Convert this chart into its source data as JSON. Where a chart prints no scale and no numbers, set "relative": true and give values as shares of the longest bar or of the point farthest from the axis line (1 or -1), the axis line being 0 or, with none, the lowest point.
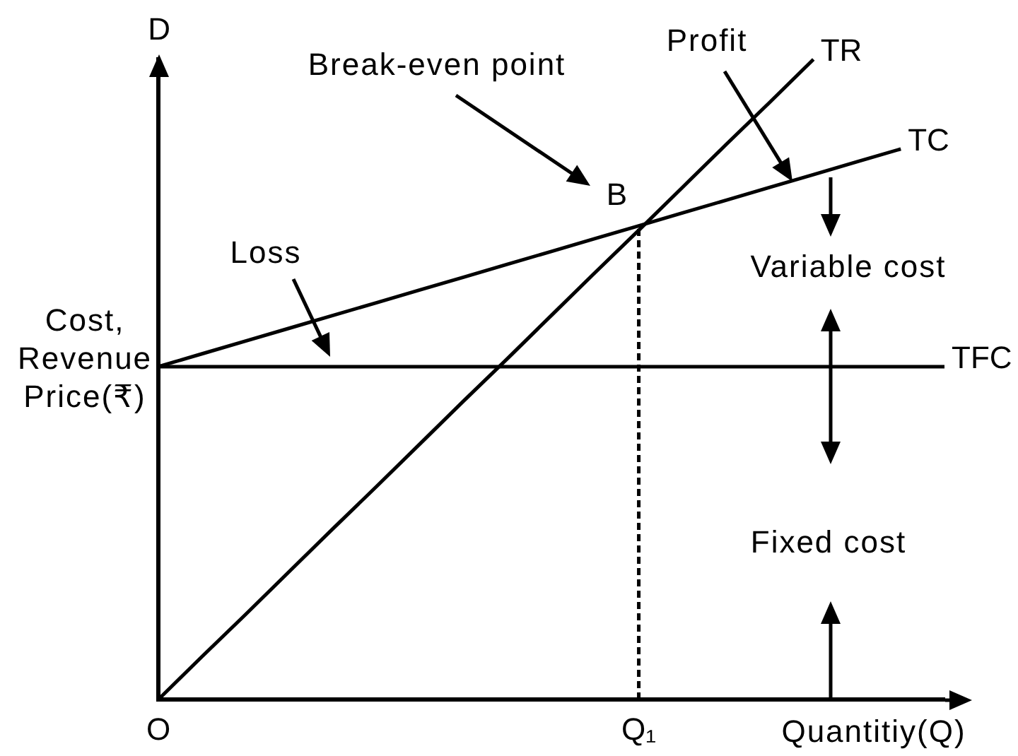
{
  "chart_data": {
    "type": "line",
    "relative": true,
    "ylabel": "Cost, Revenue Price(₹)",
    "xlabel": "Quantitiy(Q)",
    "tick_labels": "x",
    "categories": [
      "O",
      null,
      null,
      null,
      null,
      null,
      null,
      null,
      null,
      null,
      null,
      "Q₁",
      null,
      null,
      null,
      null,
      null,
      null,
      null
    ],
    "series": [
      {
        "name": "TR",
        "color": "#000000",
        "values": [
          0,
          0.067,
          0.133,
          0.2,
          0.267,
          0.333,
          0.4,
          0.467,
          0.533,
          0.6,
          0.667,
          0.733,
          0.8,
          0.867,
          0.933,
          1,
          null,
          null,
          null
        ]
      },
      {
        "name": "TC",
        "color": "#000000",
        "values": [
          0.52,
          0.54,
          0.56,
          0.58,
          0.6,
          0.62,
          0.64,
          0.66,
          0.68,
          0.7,
          0.72,
          0.74,
          0.76,
          0.78,
          0.8,
          0.82,
          0.84,
          0.86,
          null
        ]
      },
      {
        "name": "TFC",
        "color": "#000000",
        "values": [
          0.52,
          0.52,
          0.52,
          0.52,
          0.52,
          0.52,
          0.52,
          0.52,
          0.52,
          0.52,
          0.52,
          0.52,
          0.52,
          0.52,
          0.52,
          0.52,
          0.52,
          0.52,
          0.52
        ]
      },
      {
        "color": "#000000",
        "line_style": "dashed",
        "x": [
          "Q₁",
          "Q₁"
        ],
        "values": [
          0,
          0.74
        ]
      }
    ],
    "annotations": [
      "D",
      "Break-even point",
      "Profit",
      "Loss",
      "Variable cost",
      "Fixed cost",
      {
        "text": "B",
        "x": "Q₁",
        "y": 0.74
      }
    ]
  }
}
